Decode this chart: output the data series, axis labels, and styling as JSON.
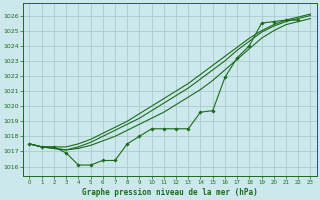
{
  "title": "Graphe pression niveau de la mer (hPa)",
  "bg_color": "#cce8ec",
  "grid_color": "#aacccc",
  "line_color": "#1a6b1a",
  "xlim": [
    -0.5,
    23.5
  ],
  "ylim": [
    1015.4,
    1026.8
  ],
  "yticks": [
    1016,
    1017,
    1018,
    1019,
    1020,
    1021,
    1022,
    1023,
    1024,
    1025,
    1026
  ],
  "xticks": [
    0,
    1,
    2,
    3,
    4,
    5,
    6,
    7,
    8,
    9,
    10,
    11,
    12,
    13,
    14,
    15,
    16,
    17,
    18,
    19,
    20,
    21,
    22,
    23
  ],
  "measured": [
    1017.5,
    1017.3,
    1017.3,
    1016.9,
    1016.1,
    1016.1,
    1016.4,
    1016.4,
    1017.5,
    1018.0,
    1018.5,
    1018.5,
    1018.5,
    1018.5,
    1019.6,
    1019.7,
    1021.9,
    1023.2,
    1024.0,
    1025.5,
    1025.6,
    1025.7,
    1025.7
  ],
  "smooth1": [
    1017.5,
    1017.3,
    1017.2,
    1017.1,
    1017.2,
    1017.4,
    1017.7,
    1018.0,
    1018.4,
    1018.8,
    1019.2,
    1019.6,
    1020.1,
    1020.6,
    1021.1,
    1021.7,
    1022.4,
    1023.1,
    1023.8,
    1024.5,
    1025.0,
    1025.4,
    1025.6,
    1025.8
  ],
  "smooth2": [
    1017.5,
    1017.3,
    1017.2,
    1017.1,
    1017.3,
    1017.6,
    1018.0,
    1018.4,
    1018.8,
    1019.2,
    1019.7,
    1020.2,
    1020.7,
    1021.2,
    1021.8,
    1022.4,
    1023.0,
    1023.7,
    1024.3,
    1024.9,
    1025.3,
    1025.6,
    1025.8,
    1026.0
  ],
  "smooth3": [
    1017.5,
    1017.3,
    1017.3,
    1017.3,
    1017.5,
    1017.8,
    1018.2,
    1018.6,
    1019.0,
    1019.5,
    1020.0,
    1020.5,
    1021.0,
    1021.5,
    1022.1,
    1022.7,
    1023.3,
    1023.9,
    1024.5,
    1025.0,
    1025.4,
    1025.7,
    1025.9,
    1026.1
  ]
}
